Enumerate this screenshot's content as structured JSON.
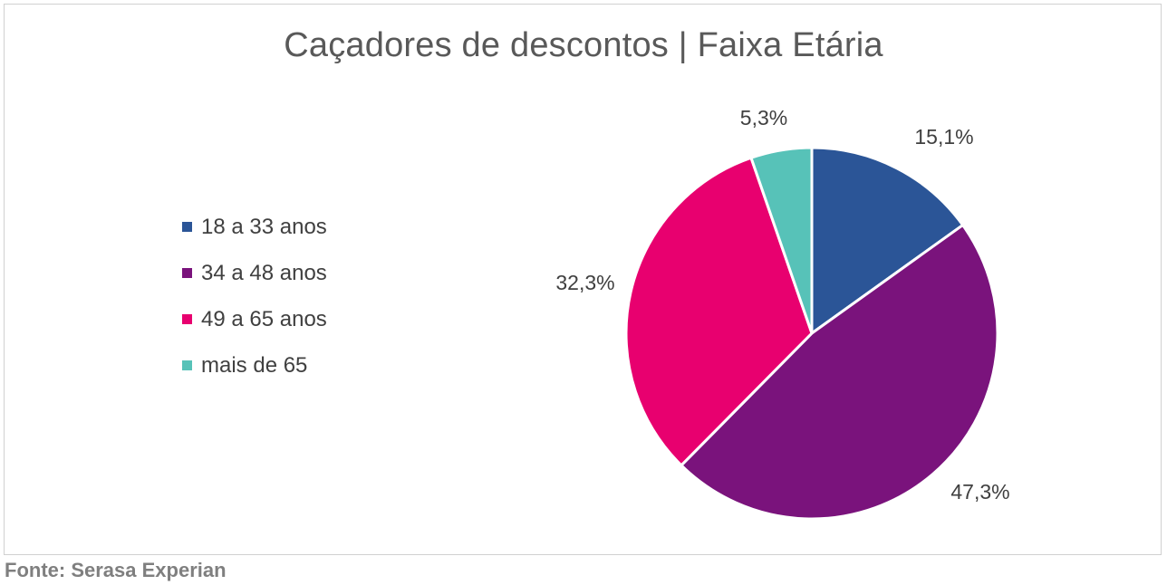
{
  "chart_data": {
    "type": "pie",
    "title": "Caçadores de descontos | Faixa Etária",
    "legend_position": "left",
    "slices": [
      {
        "label": "18 a 33 anos",
        "value": 15.1,
        "value_label": "15,1%",
        "color": "#2b5597"
      },
      {
        "label": "34 a 48 anos",
        "value": 47.3,
        "value_label": "47,3%",
        "color": "#7a137c"
      },
      {
        "label": "49 a 65 anos",
        "value": 32.3,
        "value_label": "32,3%",
        "color": "#e8006f"
      },
      {
        "label": "mais de 65",
        "value": 5.3,
        "value_label": "5,3%",
        "color": "#57c2b8"
      }
    ]
  },
  "footer": {
    "source": "Fonte: Serasa Experian"
  }
}
